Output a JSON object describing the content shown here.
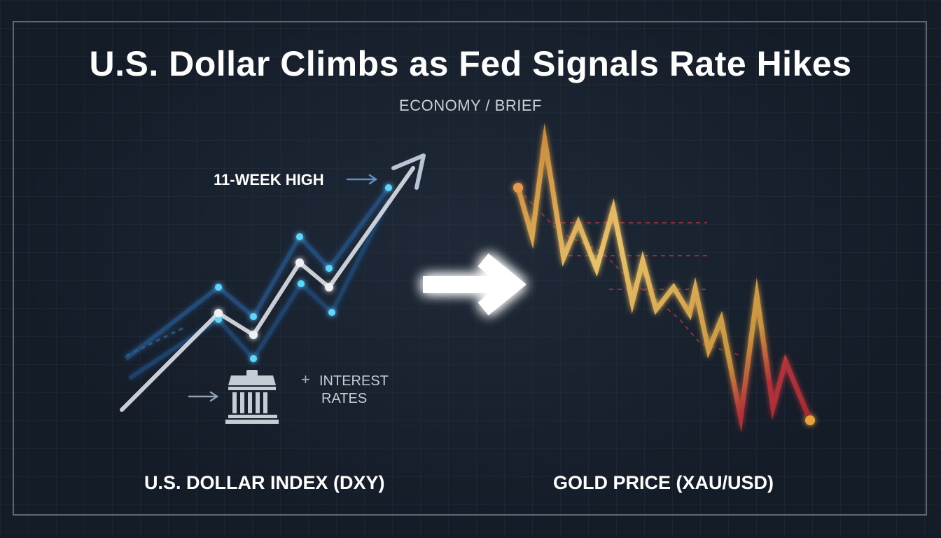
{
  "title": "U.S. Dollar Climbs as Fed Signals Rate Hikes",
  "subtitle": "ECONOMY / BRIEF",
  "left_panel": {
    "annotation_high": "11-WEEK HIGH",
    "rates_symbol": "+",
    "rates_line1": "INTEREST",
    "rates_line2": "RATES",
    "label": "U.S. DOLLAR INDEX (DXY)"
  },
  "right_panel": {
    "label": "GOLD PRICE (XAU/USD)"
  },
  "icons": [
    "arrow-right-small-icon",
    "bank-building-icon",
    "big-arrow-right-icon",
    "trend-up-arrow-icon"
  ],
  "colors": {
    "background": "#141c28",
    "dollar_line": "#d9dde3",
    "dollar_glow": "#2a5a8c",
    "dollar_points": "#5fd6ff",
    "gold_line": "#d6a64a",
    "gold_red": "#b0323a",
    "arrow": "#ffffff"
  }
}
